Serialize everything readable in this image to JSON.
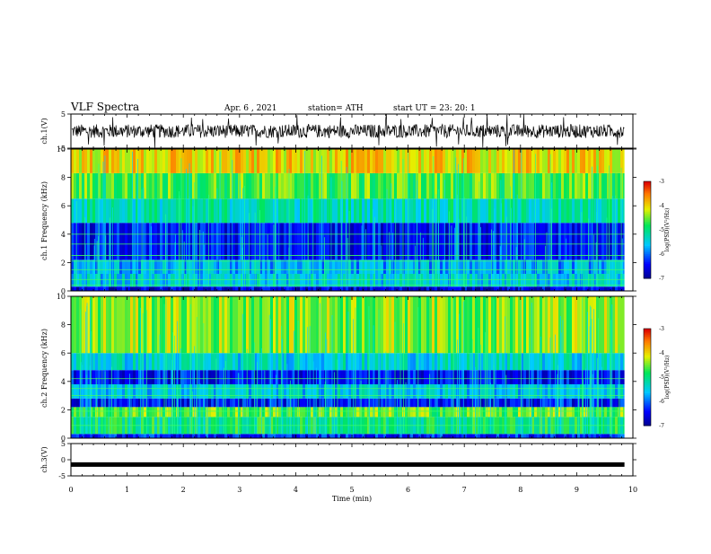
{
  "header": {
    "title": "VLF Spectra",
    "date": "Apr. 6 , 2021",
    "station": "station= ATH",
    "start": "start  UT =   23: 20: 1"
  },
  "chart_data": [
    {
      "type": "line",
      "id": "ch1-waveform",
      "ylabel": "ch.1(V)",
      "ylim": [
        -5,
        5
      ],
      "yticks": [
        "5",
        "-5"
      ],
      "xlim": [
        0,
        10
      ],
      "amplitude_typical": 2,
      "amplitude_peak": 5,
      "data_end_min": 9.85
    },
    {
      "type": "heatmap",
      "id": "ch1-spectrogram",
      "ylabel": "ch.1 Frequency (kHz)",
      "ylim": [
        0,
        10
      ],
      "yticks": [
        "0",
        "2",
        "4",
        "6",
        "8",
        "10"
      ],
      "xlim": [
        0,
        10
      ],
      "data_end_min": 9.85,
      "colorbar": {
        "label": "log(PSD)(V²/Hz)",
        "range": [
          -7,
          -3
        ],
        "ticks": [
          "-3",
          "-4",
          "-5",
          "-6",
          "-7"
        ]
      },
      "bands_khz": [
        {
          "from": 0,
          "to": 0.3,
          "level": -6.6
        },
        {
          "from": 0.3,
          "to": 1.2,
          "level": -5.5
        },
        {
          "from": 1.2,
          "to": 2.2,
          "level": -5.7
        },
        {
          "from": 2.2,
          "to": 4.8,
          "level": -6.4
        },
        {
          "from": 4.8,
          "to": 6.5,
          "level": -5.2
        },
        {
          "from": 6.5,
          "to": 8.3,
          "level": -4.6
        },
        {
          "from": 8.3,
          "to": 10,
          "level": -4.0
        }
      ],
      "lines_khz": [
        0.4,
        0.8,
        1.5,
        2.1,
        2.5,
        3.3,
        4.0
      ]
    },
    {
      "type": "heatmap",
      "id": "ch2-spectrogram",
      "ylabel": "ch.2 Frequency (kHz)",
      "ylim": [
        0,
        10
      ],
      "yticks": [
        "0",
        "2",
        "4",
        "6",
        "8",
        "10"
      ],
      "xlim": [
        0,
        10
      ],
      "data_end_min": 9.85,
      "colorbar": {
        "label": "log(PSD)(V²/Hz)",
        "range": [
          -7,
          -3
        ],
        "ticks": [
          "-3",
          "-4",
          "-5",
          "-6",
          "-7"
        ]
      },
      "bands_khz": [
        {
          "from": 0,
          "to": 0.3,
          "level": -6.3
        },
        {
          "from": 0.3,
          "to": 1.5,
          "level": -4.9
        },
        {
          "from": 1.5,
          "to": 2.2,
          "level": -4.5
        },
        {
          "from": 2.2,
          "to": 2.8,
          "level": -6.4
        },
        {
          "from": 2.8,
          "to": 3.8,
          "level": -5.5
        },
        {
          "from": 3.8,
          "to": 4.8,
          "level": -6.4
        },
        {
          "from": 4.8,
          "to": 6.0,
          "level": -5.4
        },
        {
          "from": 6.0,
          "to": 10,
          "level": -4.4
        }
      ],
      "lines_khz": [
        0.9,
        1.9,
        3.0,
        3.5,
        4.2
      ]
    },
    {
      "type": "line",
      "id": "ch3-waveform",
      "ylabel": "ch.3(V)",
      "ylim": [
        -5,
        5
      ],
      "yticks": [
        "5",
        "0",
        "-5"
      ],
      "xlim": [
        0,
        10
      ],
      "constant_value": -1.5,
      "data_end_min": 9.85,
      "xlabel": "Time (min)",
      "xticks": [
        "0",
        "1",
        "2",
        "3",
        "4",
        "5",
        "6",
        "7",
        "8",
        "9",
        "10"
      ]
    }
  ]
}
